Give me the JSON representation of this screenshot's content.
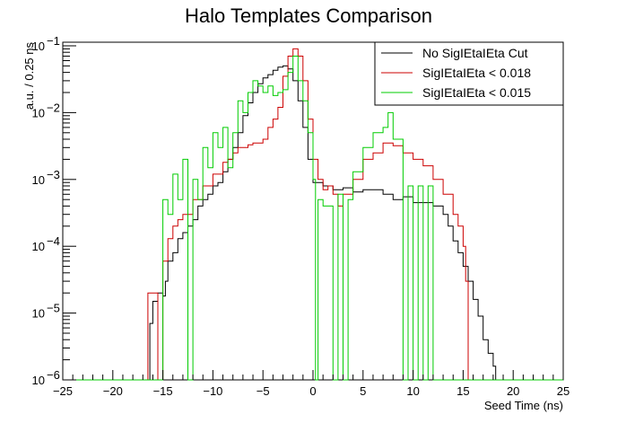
{
  "chart_data": {
    "type": "line",
    "title": "Halo Templates Comparison",
    "xlabel": "Seed Time (ns)",
    "ylabel": "a.u. / 0.25 ns",
    "xlim": [
      -25,
      25
    ],
    "ylim": [
      1e-06,
      0.12
    ],
    "yscale": "log",
    "x_ticks": [
      {
        "v": -25,
        "label": "−25"
      },
      {
        "v": -20,
        "label": "−20"
      },
      {
        "v": -15,
        "label": "−15"
      },
      {
        "v": -10,
        "label": "−10"
      },
      {
        "v": -5,
        "label": "−5"
      },
      {
        "v": 0,
        "label": "0"
      },
      {
        "v": 5,
        "label": "5"
      },
      {
        "v": 10,
        "label": "10"
      },
      {
        "v": 15,
        "label": "15"
      },
      {
        "v": 20,
        "label": "20"
      },
      {
        "v": 25,
        "label": "25"
      }
    ],
    "y_ticks": [
      {
        "v": 1e-06,
        "base": "10",
        "exp": "−6"
      },
      {
        "v": 1e-05,
        "base": "10",
        "exp": "−5"
      },
      {
        "v": 0.0001,
        "base": "10",
        "exp": "−4"
      },
      {
        "v": 0.001,
        "base": "10",
        "exp": "−3"
      },
      {
        "v": 0.01,
        "base": "10",
        "exp": "−2"
      },
      {
        "v": 0.1,
        "base": "10",
        "exp": "−1"
      }
    ],
    "legend_position": "top-right",
    "series": [
      {
        "name": "No SigIEtaIEta Cut",
        "color": "#000000",
        "points": [
          [
            -25,
            1e-06
          ],
          [
            -16.5,
            1e-06
          ],
          [
            -16.3,
            7e-06
          ],
          [
            -16,
            1.5e-05
          ],
          [
            -15.5,
            2e-05
          ],
          [
            -15,
            1.8e-05
          ],
          [
            -14.75,
            3e-05
          ],
          [
            -14.5,
            6e-05
          ],
          [
            -14,
            8e-05
          ],
          [
            -13.5,
            0.00013
          ],
          [
            -13,
            0.00016
          ],
          [
            -12.5,
            0.0002
          ],
          [
            -12,
            0.00025
          ],
          [
            -11.5,
            0.0004
          ],
          [
            -11,
            0.0005
          ],
          [
            -10.5,
            0.0006
          ],
          [
            -10,
            0.0008
          ],
          [
            -9.5,
            0.0009
          ],
          [
            -9,
            0.0013
          ],
          [
            -8.5,
            0.002
          ],
          [
            -8,
            0.003
          ],
          [
            -7.5,
            0.005
          ],
          [
            -7,
            0.009
          ],
          [
            -6.5,
            0.014
          ],
          [
            -6,
            0.02
          ],
          [
            -5.5,
            0.027
          ],
          [
            -5,
            0.033
          ],
          [
            -4.5,
            0.037
          ],
          [
            -4,
            0.043
          ],
          [
            -3.5,
            0.048
          ],
          [
            -3,
            0.05
          ],
          [
            -2.5,
            0.045
          ],
          [
            -2,
            0.03
          ],
          [
            -1.5,
            0.015
          ],
          [
            -1,
            0.006
          ],
          [
            -0.5,
            0.002
          ],
          [
            0,
            0.0009
          ],
          [
            1,
            0.0008
          ],
          [
            2,
            0.0007
          ],
          [
            3,
            0.00075
          ],
          [
            4,
            0.00065
          ],
          [
            5,
            0.0007
          ],
          [
            6,
            0.0007
          ],
          [
            7,
            0.0006
          ],
          [
            8,
            0.0005
          ],
          [
            9,
            0.00055
          ],
          [
            10,
            0.00045
          ],
          [
            11,
            0.00045
          ],
          [
            12,
            0.0004
          ],
          [
            13,
            0.0003
          ],
          [
            13.5,
            0.0002
          ],
          [
            14,
            0.00012
          ],
          [
            14.5,
            8e-05
          ],
          [
            15,
            5e-05
          ],
          [
            15.5,
            3e-05
          ],
          [
            16,
            1.6e-05
          ],
          [
            16.5,
            9e-06
          ],
          [
            17,
            4e-06
          ],
          [
            17.5,
            2.5e-06
          ],
          [
            18,
            1.6e-06
          ],
          [
            18.25,
            1e-06
          ],
          [
            25,
            1e-06
          ]
        ]
      },
      {
        "name": "SigIEtaIEta < 0.018",
        "color": "#cc0000",
        "points": [
          [
            -25,
            1e-06
          ],
          [
            -17,
            1e-06
          ],
          [
            -16.5,
            2e-05
          ],
          [
            -16,
            2e-05
          ],
          [
            -15.5,
            1e-06
          ],
          [
            -15,
            6e-05
          ],
          [
            -14.5,
            0.00013
          ],
          [
            -14,
            0.0002
          ],
          [
            -13.5,
            0.00025
          ],
          [
            -13,
            0.0003
          ],
          [
            -12,
            0.0005
          ],
          [
            -11,
            0.0008
          ],
          [
            -10,
            0.0012
          ],
          [
            -9,
            0.0018
          ],
          [
            -8.5,
            0.002
          ],
          [
            -8,
            0.0025
          ],
          [
            -7.5,
            0.003
          ],
          [
            -7,
            0.003
          ],
          [
            -6.5,
            0.0033
          ],
          [
            -6,
            0.0035
          ],
          [
            -5,
            0.004
          ],
          [
            -4.5,
            0.006
          ],
          [
            -4,
            0.008
          ],
          [
            -3.5,
            0.012
          ],
          [
            -3,
            0.035
          ],
          [
            -2.5,
            0.07
          ],
          [
            -2,
            0.09
          ],
          [
            -1.5,
            0.07
          ],
          [
            -1,
            0.03
          ],
          [
            -0.5,
            0.008
          ],
          [
            0,
            0.002
          ],
          [
            0.5,
            0.001
          ],
          [
            1,
            0.0007
          ],
          [
            1.5,
            0.0008
          ],
          [
            2,
            0.0006
          ],
          [
            2.5,
            0.0004
          ],
          [
            3,
            0.0006
          ],
          [
            4,
            0.001
          ],
          [
            5,
            0.002
          ],
          [
            6,
            0.0025
          ],
          [
            7,
            0.0035
          ],
          [
            8,
            0.0032
          ],
          [
            9,
            0.0025
          ],
          [
            10,
            0.002
          ],
          [
            11,
            0.0016
          ],
          [
            12,
            0.001
          ],
          [
            13,
            0.0006
          ],
          [
            14,
            0.0003
          ],
          [
            14.5,
            0.0002
          ],
          [
            15,
            0.0001
          ],
          [
            15.25,
            3e-05
          ],
          [
            15.5,
            1e-06
          ],
          [
            25,
            1e-06
          ]
        ]
      },
      {
        "name": "SigIEtaIEta < 0.015",
        "color": "#00cc00",
        "points": [
          [
            -25,
            1e-06
          ],
          [
            -15.5,
            1e-06
          ],
          [
            -15,
            0.0005
          ],
          [
            -14.5,
            0.0003
          ],
          [
            -14,
            0.0012
          ],
          [
            -13.5,
            0.0005
          ],
          [
            -13,
            0.002
          ],
          [
            -12.5,
            1e-06
          ],
          [
            -12,
            0.001
          ],
          [
            -11.5,
            0.0005
          ],
          [
            -11,
            0.003
          ],
          [
            -10.5,
            0.0015
          ],
          [
            -10,
            0.005
          ],
          [
            -9.5,
            0.003
          ],
          [
            -9,
            0.006
          ],
          [
            -8.5,
            0.0015
          ],
          [
            -8,
            0.005
          ],
          [
            -7.5,
            0.015
          ],
          [
            -7,
            0.01
          ],
          [
            -6.5,
            0.02
          ],
          [
            -6,
            0.03
          ],
          [
            -5.5,
            0.025
          ],
          [
            -5,
            0.02
          ],
          [
            -4.5,
            0.025
          ],
          [
            -4,
            0.018
          ],
          [
            -3.5,
            0.02
          ],
          [
            -3,
            0.022
          ],
          [
            -2.5,
            0.04
          ],
          [
            -2,
            0.07
          ],
          [
            -1.5,
            0.03
          ],
          [
            -1,
            0.015
          ],
          [
            -0.5,
            0.005
          ],
          [
            0,
            0.001
          ],
          [
            0.25,
            1e-06
          ],
          [
            0.5,
            0.0005
          ],
          [
            1,
            0.0004
          ],
          [
            2,
            1e-06
          ],
          [
            2.5,
            0.0006
          ],
          [
            3,
            1e-06
          ],
          [
            3.5,
            0.0005
          ],
          [
            4,
            0.0013
          ],
          [
            5,
            0.003
          ],
          [
            6,
            0.005
          ],
          [
            7,
            0.006
          ],
          [
            7.5,
            0.01
          ],
          [
            8,
            0.004
          ],
          [
            9,
            1e-06
          ],
          [
            9.5,
            0.0008
          ],
          [
            10,
            1e-06
          ],
          [
            10.5,
            0.0008
          ],
          [
            11,
            1e-06
          ],
          [
            11.5,
            0.0008
          ],
          [
            12,
            1e-06
          ],
          [
            25,
            1e-06
          ]
        ]
      }
    ]
  }
}
